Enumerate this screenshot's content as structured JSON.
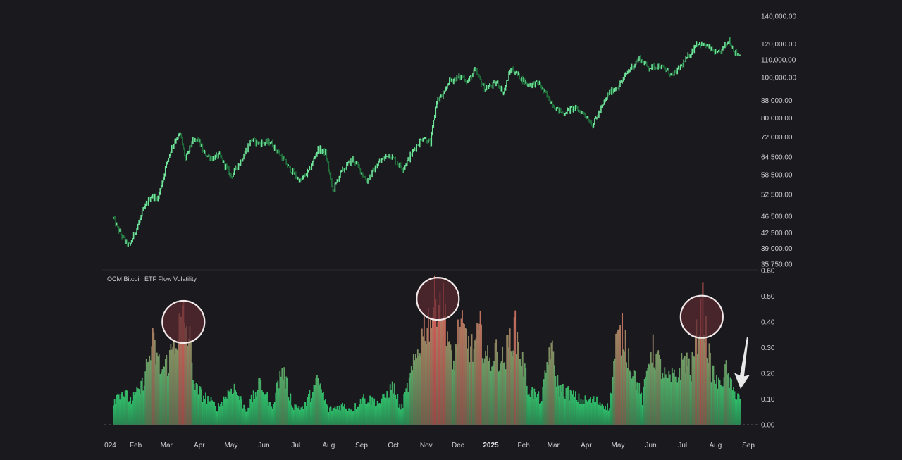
{
  "colors": {
    "background": "#1a191e",
    "price_up": "#6fe39a",
    "price_down": "#1f6b3a",
    "bar_low": "#2fbf6b",
    "bar_high": "#e0605c",
    "circle_fill": "#5a2a30",
    "circle_stroke": "#f2eaea",
    "arrow": "#e8e8e8",
    "zero_line": "#5a5a60"
  },
  "chart_data": [
    {
      "type": "line",
      "name": "price",
      "yscale": "log",
      "ylim": [
        35750,
        140000
      ],
      "y_ticks": [
        "140,000.00",
        "120,000.00",
        "110,000.00",
        "100,000.00",
        "88,000.00",
        "80,000.00",
        "72,000.00",
        "64,500.00",
        "58,500.00",
        "52,500.00",
        "46,500.00",
        "42,500.00",
        "39,000.00",
        "35,750.00"
      ],
      "x_dates": [
        "2024-01-11",
        "2024-01-16",
        "2024-01-22",
        "2024-01-26",
        "2024-02-01",
        "2024-02-08",
        "2024-02-15",
        "2024-02-22",
        "2024-03-01",
        "2024-03-05",
        "2024-03-10",
        "2024-03-14",
        "2024-03-19",
        "2024-03-25",
        "2024-03-31",
        "2024-04-05",
        "2024-04-13",
        "2024-04-20",
        "2024-05-01",
        "2024-05-10",
        "2024-05-20",
        "2024-05-27",
        "2024-06-07",
        "2024-06-15",
        "2024-06-24",
        "2024-07-05",
        "2024-07-14",
        "2024-07-22",
        "2024-07-29",
        "2024-08-05",
        "2024-08-12",
        "2024-08-24",
        "2024-09-06",
        "2024-09-17",
        "2024-09-27",
        "2024-10-10",
        "2024-10-21",
        "2024-10-29",
        "2024-11-05",
        "2024-11-11",
        "2024-11-18",
        "2024-11-22",
        "2024-12-05",
        "2024-12-10",
        "2024-12-17",
        "2024-12-26",
        "2025-01-07",
        "2025-01-13",
        "2025-01-20",
        "2025-01-27",
        "2025-02-05",
        "2025-02-15",
        "2025-02-25",
        "2025-03-03",
        "2025-03-10",
        "2025-03-20",
        "2025-03-30",
        "2025-04-07",
        "2025-04-15",
        "2025-04-22",
        "2025-05-02",
        "2025-05-10",
        "2025-05-21",
        "2025-05-30",
        "2025-06-09",
        "2025-06-22",
        "2025-07-03",
        "2025-07-11",
        "2025-07-14",
        "2025-07-23",
        "2025-08-03",
        "2025-08-08",
        "2025-08-14",
        "2025-08-19",
        "2025-08-24"
      ],
      "values": [
        46000,
        43000,
        40500,
        39500,
        43000,
        48000,
        52000,
        51500,
        62000,
        67000,
        71500,
        73000,
        63500,
        70000,
        71000,
        66000,
        64000,
        65000,
        58000,
        63000,
        71000,
        69500,
        70000,
        66000,
        61000,
        56500,
        60000,
        67500,
        66000,
        53500,
        59000,
        64000,
        56500,
        62500,
        65500,
        60500,
        67500,
        72000,
        69500,
        88000,
        91000,
        98000,
        100500,
        97500,
        104000,
        94000,
        97000,
        92000,
        105000,
        101000,
        96000,
        97000,
        88500,
        84500,
        82000,
        84500,
        82000,
        77000,
        84000,
        91500,
        95500,
        103000,
        111000,
        105500,
        106500,
        101000,
        109000,
        117000,
        121000,
        119000,
        113500,
        117000,
        123000,
        115000,
        113000
      ],
      "x_ticks": [
        "024",
        "Feb",
        "Mar",
        "Apr",
        "May",
        "Jun",
        "Jul",
        "Aug",
        "Sep",
        "Oct",
        "Nov",
        "Dec",
        "2025",
        "Feb",
        "Mar",
        "Apr",
        "May",
        "Jun",
        "Jul",
        "Aug",
        "Sep"
      ]
    },
    {
      "type": "bar",
      "title": "OCM Bitcoin ETF Flow Volatility",
      "ylim": [
        0,
        0.6
      ],
      "y_ticks": [
        "0.60",
        "0.50",
        "0.40",
        "0.30",
        "0.20",
        "0.10",
        "0.00"
      ],
      "x_start": "2024-01-11",
      "x_end": "2025-08-24",
      "key_points": [
        {
          "date": "2024-01-11",
          "value": 0.1
        },
        {
          "date": "2024-01-18",
          "value": 0.14
        },
        {
          "date": "2024-01-28",
          "value": 0.1
        },
        {
          "date": "2024-02-06",
          "value": 0.15
        },
        {
          "date": "2024-02-17",
          "value": 0.33
        },
        {
          "date": "2024-02-25",
          "value": 0.22
        },
        {
          "date": "2024-03-03",
          "value": 0.26
        },
        {
          "date": "2024-03-10",
          "value": 0.36
        },
        {
          "date": "2024-03-17",
          "value": 0.44
        },
        {
          "date": "2024-03-23",
          "value": 0.34
        },
        {
          "date": "2024-03-28",
          "value": 0.15
        },
        {
          "date": "2024-04-05",
          "value": 0.12
        },
        {
          "date": "2024-04-18",
          "value": 0.07
        },
        {
          "date": "2024-05-03",
          "value": 0.16
        },
        {
          "date": "2024-05-15",
          "value": 0.06
        },
        {
          "date": "2024-05-29",
          "value": 0.17
        },
        {
          "date": "2024-06-08",
          "value": 0.07
        },
        {
          "date": "2024-06-18",
          "value": 0.23
        },
        {
          "date": "2024-06-28",
          "value": 0.08
        },
        {
          "date": "2024-07-08",
          "value": 0.07
        },
        {
          "date": "2024-07-22",
          "value": 0.18
        },
        {
          "date": "2024-08-01",
          "value": 0.06
        },
        {
          "date": "2024-08-14",
          "value": 0.08
        },
        {
          "date": "2024-08-23",
          "value": 0.06
        },
        {
          "date": "2024-09-02",
          "value": 0.11
        },
        {
          "date": "2024-09-19",
          "value": 0.09
        },
        {
          "date": "2024-10-01",
          "value": 0.16
        },
        {
          "date": "2024-10-08",
          "value": 0.06
        },
        {
          "date": "2024-10-21",
          "value": 0.25
        },
        {
          "date": "2024-10-30",
          "value": 0.4
        },
        {
          "date": "2024-11-06",
          "value": 0.45
        },
        {
          "date": "2024-11-12",
          "value": 0.54
        },
        {
          "date": "2024-11-19",
          "value": 0.46
        },
        {
          "date": "2024-11-26",
          "value": 0.22
        },
        {
          "date": "2024-12-02",
          "value": 0.4
        },
        {
          "date": "2024-12-07",
          "value": 0.37
        },
        {
          "date": "2024-12-15",
          "value": 0.3
        },
        {
          "date": "2024-12-22",
          "value": 0.38
        },
        {
          "date": "2024-12-30",
          "value": 0.25
        },
        {
          "date": "2025-01-05",
          "value": 0.3
        },
        {
          "date": "2025-01-13",
          "value": 0.26
        },
        {
          "date": "2025-01-23",
          "value": 0.4
        },
        {
          "date": "2025-01-31",
          "value": 0.26
        },
        {
          "date": "2025-02-05",
          "value": 0.15
        },
        {
          "date": "2025-02-18",
          "value": 0.1
        },
        {
          "date": "2025-02-26",
          "value": 0.33
        },
        {
          "date": "2025-03-06",
          "value": 0.15
        },
        {
          "date": "2025-03-16",
          "value": 0.13
        },
        {
          "date": "2025-03-27",
          "value": 0.1
        },
        {
          "date": "2025-04-10",
          "value": 0.1
        },
        {
          "date": "2025-04-23",
          "value": 0.07
        },
        {
          "date": "2025-04-29",
          "value": 0.33
        },
        {
          "date": "2025-05-06",
          "value": 0.38
        },
        {
          "date": "2025-05-13",
          "value": 0.25
        },
        {
          "date": "2025-05-24",
          "value": 0.1
        },
        {
          "date": "2025-06-01",
          "value": 0.32
        },
        {
          "date": "2025-06-08",
          "value": 0.26
        },
        {
          "date": "2025-06-16",
          "value": 0.18
        },
        {
          "date": "2025-06-26",
          "value": 0.2
        },
        {
          "date": "2025-07-03",
          "value": 0.28
        },
        {
          "date": "2025-07-09",
          "value": 0.22
        },
        {
          "date": "2025-07-15",
          "value": 0.38
        },
        {
          "date": "2025-07-20",
          "value": 0.48
        },
        {
          "date": "2025-07-27",
          "value": 0.24
        },
        {
          "date": "2025-08-04",
          "value": 0.16
        },
        {
          "date": "2025-08-11",
          "value": 0.22
        },
        {
          "date": "2025-08-17",
          "value": 0.14
        },
        {
          "date": "2025-08-24",
          "value": 0.12
        }
      ],
      "highlights": [
        {
          "date": "2024-03-17",
          "value": 0.4
        },
        {
          "date": "2024-11-12",
          "value": 0.49
        },
        {
          "date": "2025-07-19",
          "value": 0.42
        }
      ],
      "arrow_target": {
        "date": "2025-08-22",
        "value": 0.15
      }
    }
  ]
}
